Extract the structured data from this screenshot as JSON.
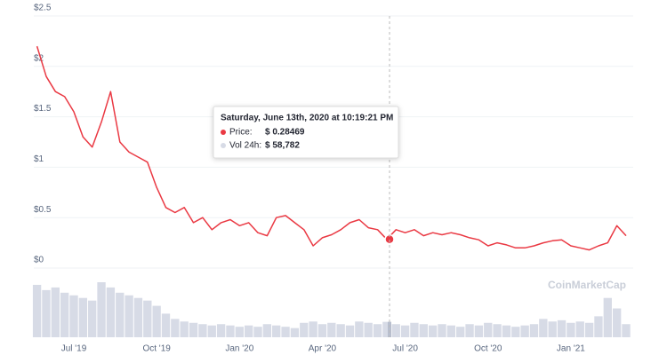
{
  "chart_data": {
    "type": "line",
    "categories": [
      null,
      null,
      null,
      null,
      "Jul '19",
      null,
      null,
      null,
      null,
      null,
      null,
      null,
      null,
      "Oct '19",
      null,
      null,
      null,
      null,
      null,
      null,
      null,
      null,
      "Jan '20",
      null,
      null,
      null,
      null,
      null,
      null,
      null,
      null,
      "Apr '20",
      null,
      null,
      null,
      null,
      null,
      null,
      null,
      null,
      "Jul '20",
      null,
      null,
      null,
      null,
      null,
      null,
      null,
      null,
      "Oct '20",
      null,
      null,
      null,
      null,
      null,
      null,
      null,
      null,
      "Jan '21",
      null,
      null,
      null,
      null,
      null,
      null
    ],
    "series": [
      {
        "color": "#ea3943",
        "values": [
          2.2,
          1.9,
          1.75,
          1.7,
          1.55,
          1.3,
          1.2,
          1.45,
          1.75,
          1.25,
          1.15,
          1.1,
          1.05,
          0.8,
          0.6,
          0.55,
          0.6,
          0.45,
          0.5,
          0.38,
          0.45,
          0.48,
          0.42,
          0.45,
          0.35,
          0.32,
          0.5,
          0.52,
          0.45,
          0.38,
          0.22,
          0.3,
          0.33,
          0.38,
          0.45,
          0.48,
          0.4,
          0.38,
          0.28469,
          0.38,
          0.35,
          0.38,
          0.32,
          0.35,
          0.33,
          0.35,
          0.33,
          0.3,
          0.28,
          0.22,
          0.25,
          0.23,
          0.2,
          0.2,
          0.22,
          0.25,
          0.27,
          0.28,
          0.22,
          0.2,
          0.18,
          0.22,
          0.25,
          0.42,
          0.32
        ]
      },
      {
        "color": "#d7dbe6",
        "axis": "y2",
        "values": [
          200000,
          180000,
          190000,
          170000,
          160000,
          150000,
          140000,
          210000,
          190000,
          170000,
          160000,
          150000,
          140000,
          120000,
          90000,
          70000,
          60000,
          55000,
          50000,
          45000,
          50000,
          45000,
          40000,
          45000,
          40000,
          50000,
          45000,
          40000,
          35000,
          55000,
          60000,
          50000,
          55000,
          50000,
          45000,
          60000,
          55000,
          50000,
          58782,
          50000,
          45000,
          55000,
          50000,
          45000,
          50000,
          45000,
          40000,
          50000,
          45000,
          55000,
          50000,
          45000,
          40000,
          45000,
          50000,
          70000,
          60000,
          65000,
          55000,
          60000,
          55000,
          80000,
          150000,
          110000,
          50000
        ]
      }
    ],
    "ylim": [
      0,
      2.5
    ],
    "yticks": [
      {
        "value": 0,
        "label": "$0"
      },
      {
        "value": 0.5,
        "label": "$0.5"
      },
      {
        "value": 1,
        "label": "$1"
      },
      {
        "value": 1.5,
        "label": "$1.5"
      },
      {
        "value": 2,
        "label": "$2"
      },
      {
        "value": 2.5,
        "label": "$2.5"
      }
    ],
    "grid": true,
    "watermark": "CoinMarketCap",
    "tooltip": {
      "date": "Saturday, June 13th, 2020 at 10:19:21 PM",
      "price_label": "Price:",
      "price": 0.28469,
      "price_text": "$ 0.28469",
      "volume_label": "Vol 24h:",
      "volume": 58782,
      "volume_text": "$ 58,782"
    }
  }
}
